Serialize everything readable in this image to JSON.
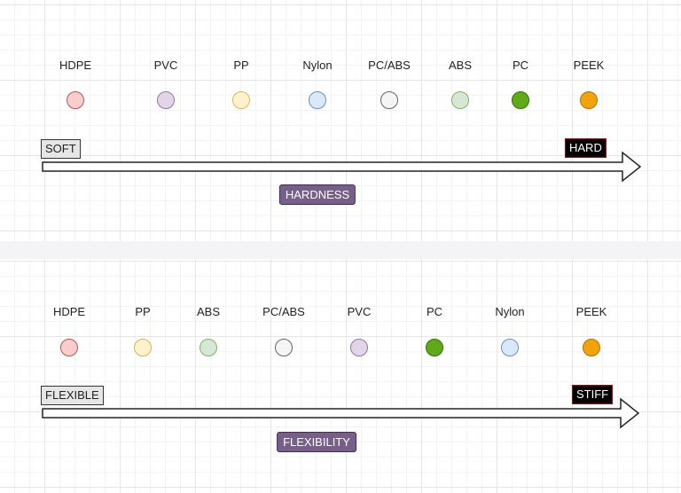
{
  "scales": [
    {
      "id": "hardness",
      "low_label": "SOFT",
      "high_label": "HARD",
      "caption": "HARDNESS",
      "materials": [
        {
          "name": "HDPE",
          "color": "#f8cecc",
          "border": "#b85450"
        },
        {
          "name": "PVC",
          "color": "#e1d5e7",
          "border": "#9673a6"
        },
        {
          "name": "PP",
          "color": "#fff2cc",
          "border": "#d6b656"
        },
        {
          "name": "Nylon",
          "color": "#dae8fc",
          "border": "#6c8ebf"
        },
        {
          "name": "PC/ABS",
          "color": "#f5f5f5",
          "border": "#666666"
        },
        {
          "name": "ABS",
          "color": "#d5e8d4",
          "border": "#82b366"
        },
        {
          "name": "PC",
          "color": "#60a917",
          "border": "#2d7600"
        },
        {
          "name": "PEEK",
          "color": "#f0a30a",
          "border": "#bd7000"
        }
      ]
    },
    {
      "id": "flexibility",
      "low_label": "FLEXIBLE",
      "high_label": "STIFF",
      "caption": "FLEXIBILITY",
      "materials": [
        {
          "name": "HDPE",
          "color": "#f8cecc",
          "border": "#b85450"
        },
        {
          "name": "PP",
          "color": "#fff2cc",
          "border": "#d6b656"
        },
        {
          "name": "ABS",
          "color": "#d5e8d4",
          "border": "#82b366"
        },
        {
          "name": "PC/ABS",
          "color": "#f5f5f5",
          "border": "#666666"
        },
        {
          "name": "PVC",
          "color": "#e1d5e7",
          "border": "#9673a6"
        },
        {
          "name": "PC",
          "color": "#60a917",
          "border": "#2d7600"
        },
        {
          "name": "Nylon",
          "color": "#dae8fc",
          "border": "#6c8ebf"
        },
        {
          "name": "PEEK",
          "color": "#f0a30a",
          "border": "#bd7000"
        }
      ]
    }
  ]
}
